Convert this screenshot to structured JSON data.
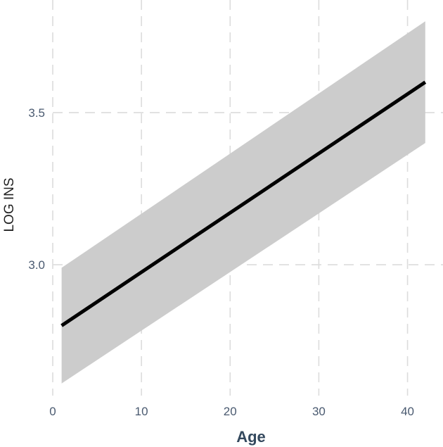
{
  "chart_data": {
    "type": "line",
    "title": "",
    "xlabel": "Age",
    "ylabel": "LOG INS",
    "xlim": [
      0,
      44
    ],
    "ylim": [
      2.57,
      3.87
    ],
    "x_ticks": [
      0,
      10,
      20,
      30,
      40
    ],
    "x_tick_labels": [
      "0",
      "10",
      "20",
      "30",
      "40"
    ],
    "y_ticks": [
      3.0,
      3.5
    ],
    "y_tick_labels": [
      "3.0",
      "3.5"
    ],
    "grid": true,
    "legend": "none",
    "series": [
      {
        "x": [
          1,
          42
        ],
        "y": [
          2.8,
          3.6
        ],
        "ci_lower": [
          2.61,
          3.4
        ],
        "ci_upper": [
          2.99,
          3.8
        ],
        "color": "#000000",
        "band_color": "#cccccc"
      }
    ]
  }
}
